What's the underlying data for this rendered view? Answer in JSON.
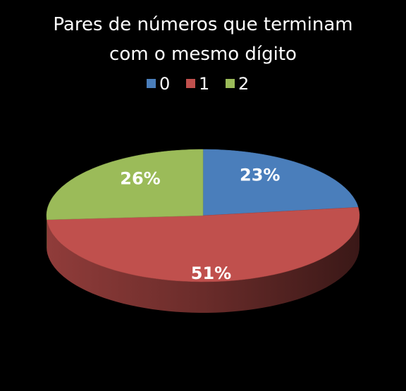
{
  "chart_data": {
    "type": "pie",
    "title": "Pares de números que terminam com o mesmo dígito",
    "categories": [
      "0",
      "1",
      "2"
    ],
    "values": [
      23,
      51,
      26
    ],
    "value_labels": [
      "23%",
      "51%",
      "26%"
    ],
    "colors": [
      "#4a7ebb",
      "#c0504d",
      "#9bbb59"
    ],
    "legend": "top"
  }
}
